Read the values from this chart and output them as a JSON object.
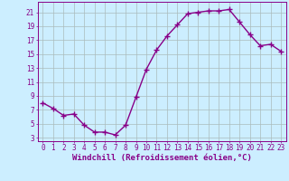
{
  "x": [
    0,
    1,
    2,
    3,
    4,
    5,
    6,
    7,
    8,
    9,
    10,
    11,
    12,
    13,
    14,
    15,
    16,
    17,
    18,
    19,
    20,
    21,
    22,
    23
  ],
  "y": [
    8.0,
    7.2,
    6.2,
    6.4,
    4.8,
    3.8,
    3.8,
    3.4,
    4.8,
    8.8,
    12.8,
    15.6,
    17.6,
    19.2,
    20.8,
    21.0,
    21.2,
    21.2,
    21.4,
    19.6,
    17.8,
    16.2,
    16.4,
    15.4
  ],
  "line_color": "#880088",
  "marker": "+",
  "marker_size": 4,
  "background_color": "#cceeff",
  "grid_color": "#aabbbb",
  "xlabel": "Windchill (Refroidissement éolien,°C)",
  "xlabel_fontsize": 6.5,
  "yticks": [
    3,
    5,
    7,
    9,
    11,
    13,
    15,
    17,
    19,
    21
  ],
  "xticks": [
    0,
    1,
    2,
    3,
    4,
    5,
    6,
    7,
    8,
    9,
    10,
    11,
    12,
    13,
    14,
    15,
    16,
    17,
    18,
    19,
    20,
    21,
    22,
    23
  ],
  "ylim": [
    2.5,
    22.5
  ],
  "xlim": [
    -0.5,
    23.5
  ],
  "tick_fontsize": 5.5,
  "line_width": 1.0
}
